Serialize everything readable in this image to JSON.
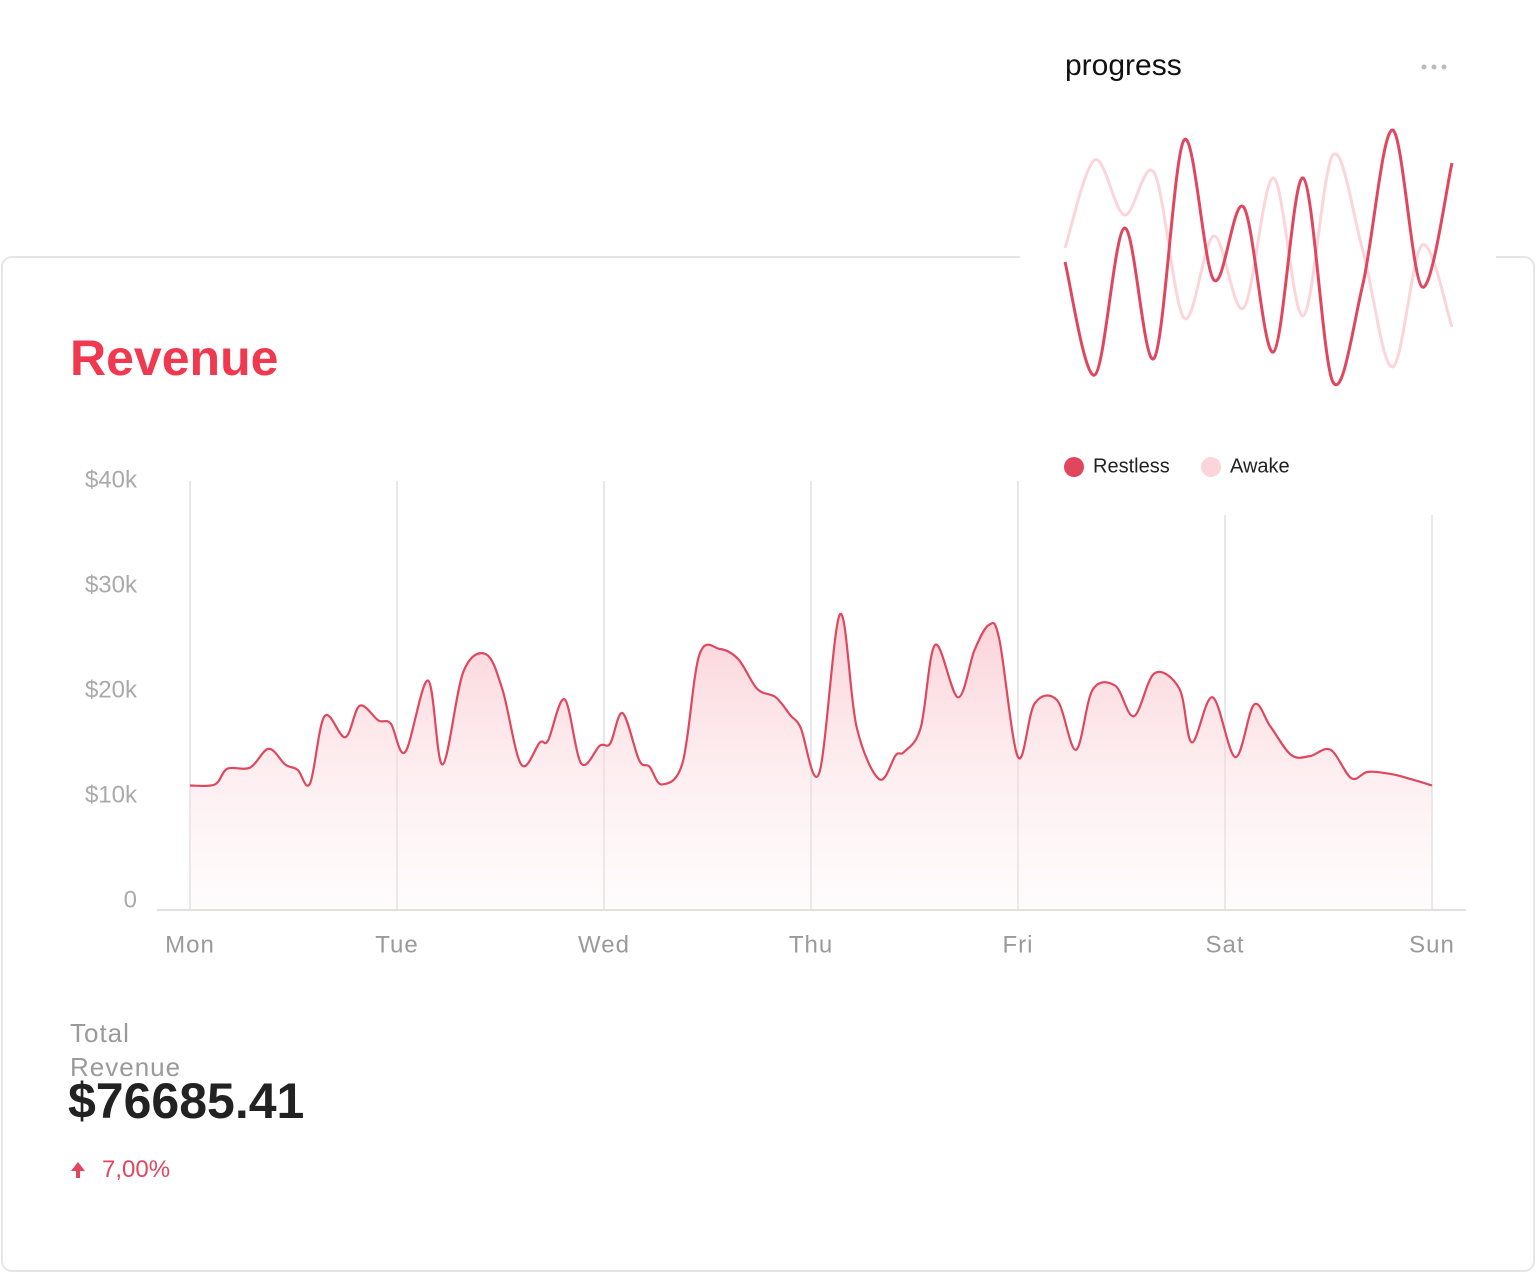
{
  "chart_data": [
    {
      "type": "area",
      "title": "Revenue",
      "color": "#e0475e",
      "x": [
        0,
        0.12,
        0.18,
        0.29,
        0.38,
        0.46,
        0.52,
        0.58,
        0.65,
        0.75,
        0.82,
        0.91,
        0.97,
        1.04,
        1.15,
        1.22,
        1.32,
        1.43,
        1.51,
        1.6,
        1.69,
        1.73,
        1.81,
        1.89,
        1.98,
        2.03,
        2.09,
        2.17,
        2.22,
        2.28,
        2.38,
        2.46,
        2.56,
        2.65,
        2.74,
        2.83,
        2.9,
        2.95,
        3.04,
        3.14,
        3.22,
        3.33,
        3.41,
        3.45,
        3.53,
        3.6,
        3.71,
        3.79,
        3.86,
        3.91,
        4.0,
        4.08,
        4.19,
        4.28,
        4.36,
        4.47,
        4.56,
        4.66,
        4.78,
        4.84,
        4.94,
        5.05,
        5.14,
        5.22,
        5.32,
        5.41,
        5.51,
        5.61,
        5.69,
        5.8,
        5.9,
        6
      ],
      "values": [
        11000,
        11100,
        12600,
        12700,
        14500,
        13000,
        12500,
        11200,
        17600,
        15600,
        18600,
        17200,
        16900,
        14200,
        21000,
        13000,
        21800,
        23500,
        20100,
        13000,
        15100,
        15300,
        19200,
        13100,
        14800,
        15000,
        17900,
        13400,
        12800,
        11100,
        13200,
        23400,
        24000,
        23000,
        20200,
        19400,
        17700,
        16500,
        12200,
        27300,
        16600,
        11600,
        13900,
        14200,
        16500,
        24400,
        19400,
        23900,
        26300,
        24900,
        13700,
        18800,
        19100,
        14400,
        20100,
        20500,
        17600,
        21700,
        20200,
        15100,
        19400,
        13700,
        18700,
        16600,
        13900,
        13800,
        14400,
        11700,
        12300,
        12100,
        11600,
        11000
      ],
      "xlim": [
        0,
        6
      ],
      "xticks": [
        {
          "value": 0,
          "label": "Mon"
        },
        {
          "value": 1,
          "label": "Tue"
        },
        {
          "value": 2,
          "label": "Wed"
        },
        {
          "value": 3,
          "label": "Thu"
        },
        {
          "value": 4,
          "label": "Fri"
        },
        {
          "value": 5,
          "label": "Sat"
        },
        {
          "value": 6,
          "label": "Sun"
        }
      ],
      "ylim": [
        0,
        40000
      ],
      "yticks": [
        0,
        {
          "value": 10000,
          "label": "$10k"
        },
        {
          "value": 20000,
          "label": "$20k"
        },
        {
          "value": 30000,
          "label": "$30k"
        },
        {
          "value": 40000,
          "label": "$40k"
        }
      ],
      "grid": "x"
    },
    {
      "type": "line",
      "title": "progress",
      "series": [
        {
          "name": "Restless",
          "color": "#e0475e",
          "values": [
            138,
            25,
            172,
            42,
            260,
            120,
            193,
            48,
            222,
            18,
            115,
            270,
            113,
            237
          ]
        },
        {
          "name": "Awake",
          "color": "#fcd5da",
          "values": [
            152,
            240,
            185,
            227,
            82,
            164,
            92,
            222,
            84,
            245,
            150,
            33,
            155,
            73
          ]
        }
      ]
    }
  ],
  "summary": {
    "label": "Total Revenue",
    "value": "$76685.41",
    "change": "7,00%"
  }
}
